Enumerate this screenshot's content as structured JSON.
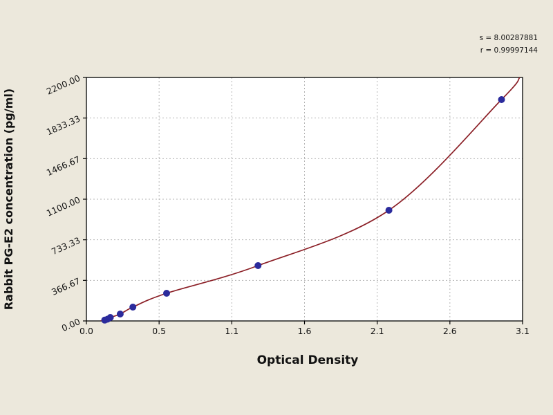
{
  "stats": {
    "s_label": "s = 8.00287881",
    "r_label": "r = 0.99997144"
  },
  "chart_data": {
    "type": "scatter",
    "title": "",
    "xlabel": "Optical Density",
    "ylabel": "Rabbit PG-E2 concentration (pg/ml)",
    "xlim": [
      0,
      3.1
    ],
    "ylim": [
      0,
      2200
    ],
    "x_tick_labels": [
      "0.0",
      "0.5",
      "1.1",
      "1.6",
      "2.1",
      "2.6",
      "3.1"
    ],
    "y_tick_labels": [
      "0.00",
      "366.67",
      "733.33",
      "1100.00",
      "1466.67",
      "1833.33",
      "2200.00"
    ],
    "grid": true,
    "legend": false,
    "points": [
      [
        0.13,
        7.8
      ],
      [
        0.15,
        15.6
      ],
      [
        0.17,
        31.2
      ],
      [
        0.24,
        62.5
      ],
      [
        0.33,
        125
      ],
      [
        0.57,
        250
      ],
      [
        1.22,
        500
      ],
      [
        2.15,
        1000
      ],
      [
        2.95,
        2000
      ]
    ],
    "curve_start": [
      0.1,
      0
    ],
    "curve_end": [
      3.08,
      2200
    ],
    "colors": {
      "curve": "#8b1f26",
      "point": "#2b2b9c",
      "grid": "#b4b4b4",
      "frame": "#000000",
      "page_background": "#ece8dc",
      "plot_background": "#ffffff",
      "text": "#111111"
    }
  }
}
